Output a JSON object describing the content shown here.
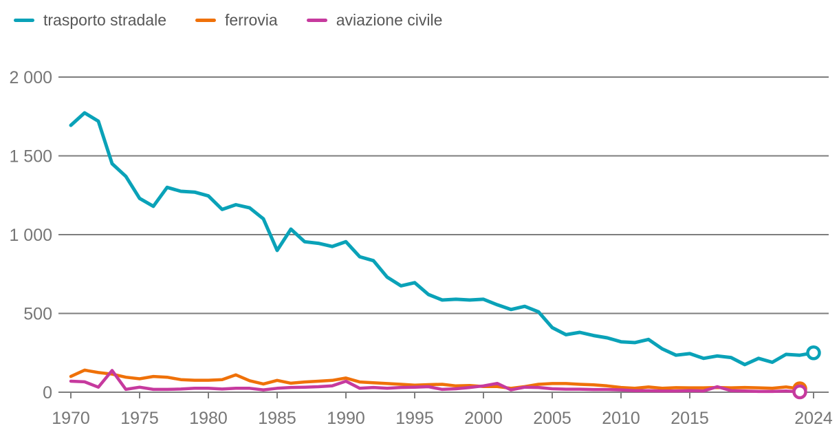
{
  "legend": {
    "items": [
      {
        "label": "trasporto stradale",
        "color": "#0aa2b8"
      },
      {
        "label": "ferrovia",
        "color": "#ef7109"
      },
      {
        "label": "aviazione civile",
        "color": "#c63a9e"
      }
    ]
  },
  "chart_data": {
    "type": "line",
    "title": "",
    "xlabel": "",
    "ylabel": "",
    "x_range": [
      1970,
      2024
    ],
    "ylim": [
      0,
      2000
    ],
    "grid": "horizontal",
    "legend_position": "top-left",
    "end_marker": "open-circle",
    "y_ticks": [
      {
        "value": 0,
        "label": "0"
      },
      {
        "value": 500,
        "label": "500"
      },
      {
        "value": 1000,
        "label": "1 000"
      },
      {
        "value": 1500,
        "label": "1 500"
      },
      {
        "value": 2000,
        "label": "2 000"
      }
    ],
    "x_tick_years": [
      1970,
      1975,
      1980,
      1985,
      1990,
      1995,
      2000,
      2005,
      2010,
      2015,
      2024
    ],
    "colors": {
      "grid": "#7d7d7d",
      "axis_text": "#767676",
      "legend_text": "#575757",
      "background": "#ffffff"
    },
    "series": [
      {
        "name": "trasporto stradale",
        "color": "#0aa2b8",
        "start_year": 1970,
        "values": [
          1694,
          1773,
          1720,
          1450,
          1370,
          1230,
          1180,
          1300,
          1275,
          1270,
          1246,
          1160,
          1190,
          1170,
          1100,
          900,
          1035,
          955,
          945,
          925,
          955,
          860,
          835,
          730,
          675,
          695,
          620,
          585,
          590,
          585,
          590,
          555,
          525,
          545,
          510,
          410,
          365,
          380,
          360,
          345,
          320,
          315,
          335,
          275,
          235,
          245,
          215,
          230,
          220,
          175,
          215,
          190,
          240,
          235,
          250
        ]
      },
      {
        "name": "ferrovia",
        "color": "#ef7109",
        "start_year": 1970,
        "values": [
          100,
          140,
          125,
          115,
          95,
          85,
          100,
          95,
          80,
          76,
          76,
          80,
          110,
          73,
          52,
          75,
          57,
          65,
          70,
          75,
          90,
          65,
          60,
          55,
          50,
          45,
          48,
          50,
          40,
          43,
          36,
          36,
          25,
          36,
          50,
          55,
          55,
          50,
          47,
          40,
          30,
          25,
          33,
          25,
          29,
          28,
          28,
          30,
          28,
          30,
          28,
          25,
          33,
          22
        ]
      },
      {
        "name": "aviazione civile",
        "color": "#c63a9e",
        "start_year": 1970,
        "values": [
          70,
          66,
          32,
          138,
          18,
          32,
          18,
          18,
          20,
          25,
          25,
          20,
          25,
          25,
          15,
          25,
          30,
          32,
          35,
          40,
          70,
          25,
          30,
          25,
          30,
          32,
          35,
          18,
          22,
          30,
          40,
          56,
          15,
          32,
          30,
          22,
          19,
          19,
          17,
          17,
          15,
          10,
          10,
          8,
          8,
          10,
          8,
          35,
          10,
          8,
          5,
          5,
          8,
          2
        ]
      }
    ]
  }
}
